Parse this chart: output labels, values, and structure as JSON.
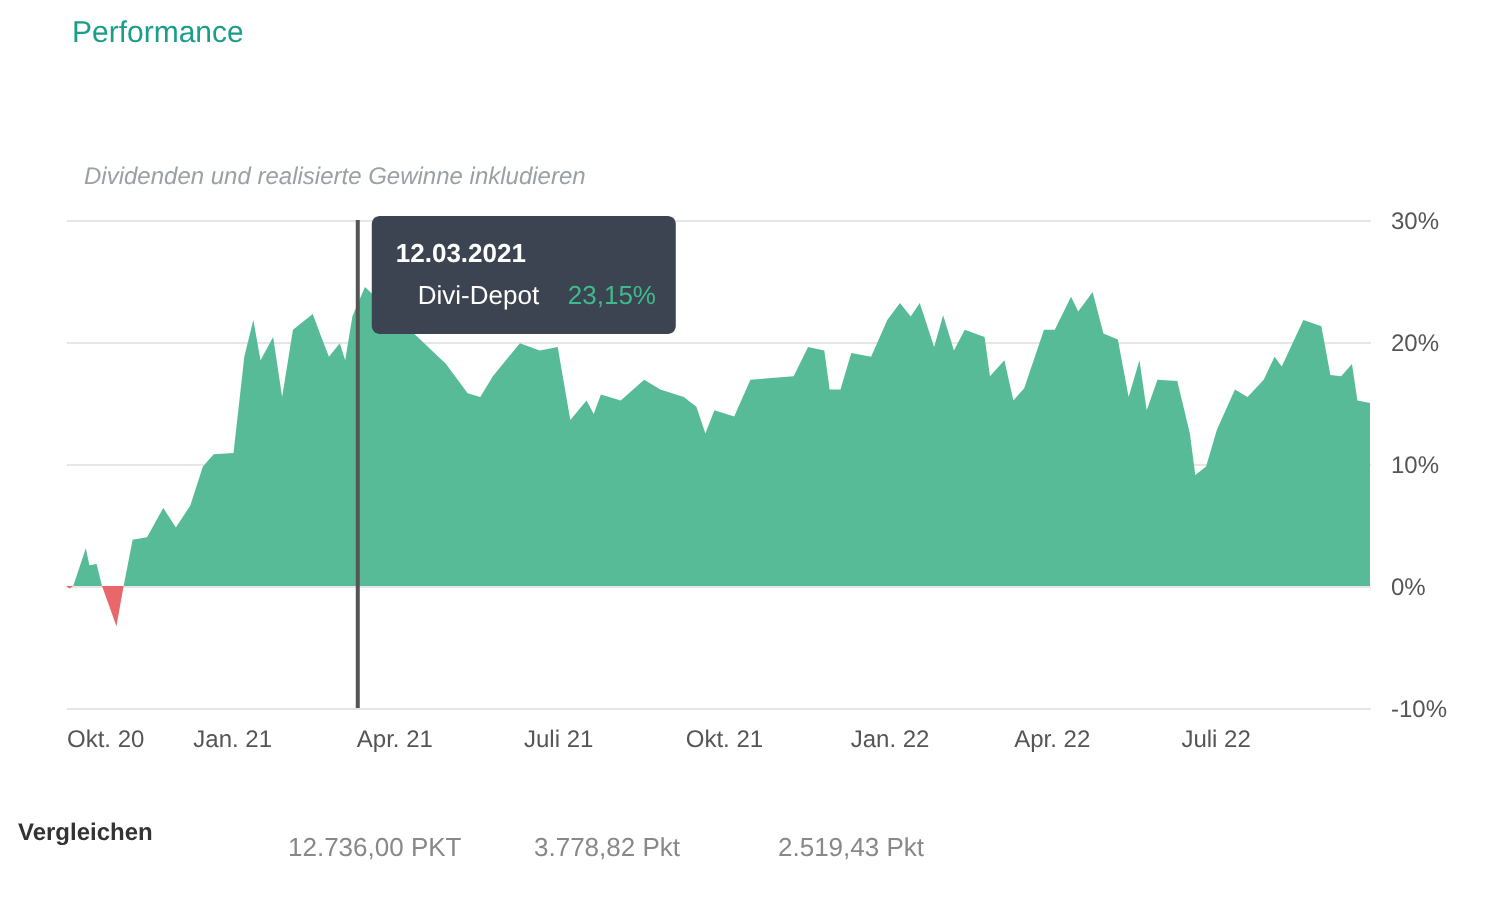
{
  "chart_data": {
    "type": "area",
    "title": "Performance",
    "x": [
      "2020-10-01",
      "2020-10-03",
      "2020-10-05",
      "2020-10-12",
      "2020-10-14",
      "2020-10-18",
      "2020-10-21",
      "2020-10-29",
      "2020-11-02",
      "2020-11-07",
      "2020-11-15",
      "2020-11-24",
      "2020-12-01",
      "2020-12-09",
      "2020-12-16",
      "2020-12-22",
      "2021-01-02",
      "2021-01-08",
      "2021-01-13",
      "2021-01-17",
      "2021-01-24",
      "2021-01-29",
      "2021-02-04",
      "2021-02-15",
      "2021-02-19",
      "2021-02-24",
      "2021-03-02",
      "2021-03-05",
      "2021-03-09",
      "2021-03-12",
      "2021-03-16",
      "2021-03-23",
      "2021-04-30",
      "2021-05-12",
      "2021-05-19",
      "2021-05-26",
      "2021-06-10",
      "2021-06-21",
      "2021-07-01",
      "2021-07-08",
      "2021-07-17",
      "2021-07-21",
      "2021-07-25",
      "2021-08-05",
      "2021-08-18",
      "2021-08-27",
      "2021-09-09",
      "2021-09-16",
      "2021-09-21",
      "2021-09-26",
      "2021-10-07",
      "2021-10-16",
      "2021-11-09",
      "2021-11-17",
      "2021-11-26",
      "2021-11-29",
      "2021-12-05",
      "2021-12-11",
      "2021-12-22",
      "2021-12-31",
      "2022-01-07",
      "2022-01-13",
      "2022-01-18",
      "2022-01-26",
      "2022-01-31",
      "2022-02-06",
      "2022-02-12",
      "2022-02-23",
      "2022-02-26",
      "2022-03-06",
      "2022-03-11",
      "2022-03-17",
      "2022-03-28",
      "2022-04-03",
      "2022-04-12",
      "2022-04-16",
      "2022-04-24",
      "2022-04-30",
      "2022-05-08",
      "2022-05-14",
      "2022-05-20",
      "2022-05-24",
      "2022-05-30",
      "2022-06-10",
      "2022-06-17",
      "2022-06-20",
      "2022-06-26",
      "2022-07-02",
      "2022-07-12",
      "2022-07-19",
      "2022-07-28",
      "2022-08-03",
      "2022-08-07",
      "2022-08-19",
      "2022-08-29",
      "2022-09-03",
      "2022-09-09",
      "2022-09-15",
      "2022-09-18",
      "2022-09-25"
    ],
    "series": [
      {
        "name": "Divi-Depot",
        "color": "#57bb97",
        "values": [
          0,
          null,
          0,
          3.1,
          1.7,
          1.8,
          0,
          null,
          0,
          3.8,
          4.0,
          6.4,
          4.8,
          6.6,
          9.8,
          10.8,
          10.9,
          18.8,
          21.8,
          18.5,
          20.4,
          15.5,
          21.0,
          22.3,
          20.7,
          18.8,
          19.9,
          18.5,
          22.1,
          23.15,
          24.5,
          null,
          18.2,
          15.8,
          15.5,
          17.2,
          19.9,
          19.3,
          19.6,
          13.6,
          15.2,
          14.1,
          15.7,
          15.2,
          16.9,
          16.1,
          15.5,
          14.7,
          12.5,
          14.4,
          13.9,
          16.9,
          17.2,
          19.6,
          19.3,
          16.1,
          16.1,
          19.1,
          18.8,
          21.8,
          23.2,
          22.1,
          23.2,
          19.6,
          22.2,
          19.3,
          21.0,
          20.4,
          17.2,
          18.5,
          15.2,
          16.2,
          21.0,
          21.0,
          23.7,
          22.5,
          24.1,
          20.7,
          20.2,
          15.5,
          18.5,
          14.4,
          16.9,
          16.8,
          12.5,
          9.1,
          9.8,
          12.8,
          16.1,
          15.5,
          16.9,
          18.8,
          18.0,
          21.8,
          21.3,
          17.3,
          17.2,
          18.2,
          15.2,
          15.0
        ]
      },
      {
        "color": "#e8676b",
        "values": [
          0,
          -0.2,
          0,
          null,
          null,
          null,
          0,
          -3.3,
          0,
          null,
          null,
          null,
          null,
          null,
          null,
          null,
          null,
          null,
          null,
          null,
          null,
          null,
          null,
          null,
          null,
          null,
          null,
          null,
          null,
          null,
          null,
          null,
          null,
          null,
          null,
          null,
          null,
          null,
          null,
          null,
          null,
          null,
          null,
          null,
          null,
          null,
          null,
          null,
          null,
          null,
          null,
          null,
          null,
          null,
          null,
          null,
          null,
          null,
          null,
          null,
          null,
          null,
          null,
          null,
          null,
          null,
          null,
          null,
          null,
          null,
          null,
          null,
          null,
          null,
          null,
          null,
          null,
          null,
          null,
          null,
          null,
          null,
          null,
          null,
          null,
          null,
          null,
          null,
          null,
          null,
          null,
          null,
          null,
          null,
          null,
          null,
          null,
          null,
          null,
          null
        ]
      }
    ],
    "xlim": [
      "2020-10-01",
      "2022-09-25"
    ],
    "xticks": [
      {
        "value": "2020-10-01",
        "label": "Okt. 20"
      },
      {
        "value": "2021-01-01",
        "label": "Jan. 21"
      },
      {
        "value": "2021-04-01",
        "label": "Apr. 21"
      },
      {
        "value": "2021-07-01",
        "label": "Juli 21"
      },
      {
        "value": "2021-10-01",
        "label": "Okt. 21"
      },
      {
        "value": "2022-01-01",
        "label": "Jan. 22"
      },
      {
        "value": "2022-04-01",
        "label": "Apr. 22"
      },
      {
        "value": "2022-07-01",
        "label": "Juli 22"
      }
    ],
    "ylim": [
      -10,
      30
    ],
    "yticks": [
      {
        "value": -10,
        "label": "-10%"
      },
      {
        "value": 0,
        "label": "0%"
      },
      {
        "value": 10,
        "label": "10%"
      },
      {
        "value": 20,
        "label": "20%"
      },
      {
        "value": 30,
        "label": "30%"
      }
    ],
    "grid": "y",
    "ref_lines": [
      {
        "axis": "x",
        "value": "2021-03-12",
        "label": null,
        "color": "#555555"
      }
    ],
    "annotations": [
      "12.03.2021",
      "23,15%",
      "Dividenden und realisierte Gewinne inkludieren",
      "Vergleichen",
      "12.736,00 PKT",
      "3.778,82 Pkt",
      "2.519,43 Pkt"
    ]
  }
}
